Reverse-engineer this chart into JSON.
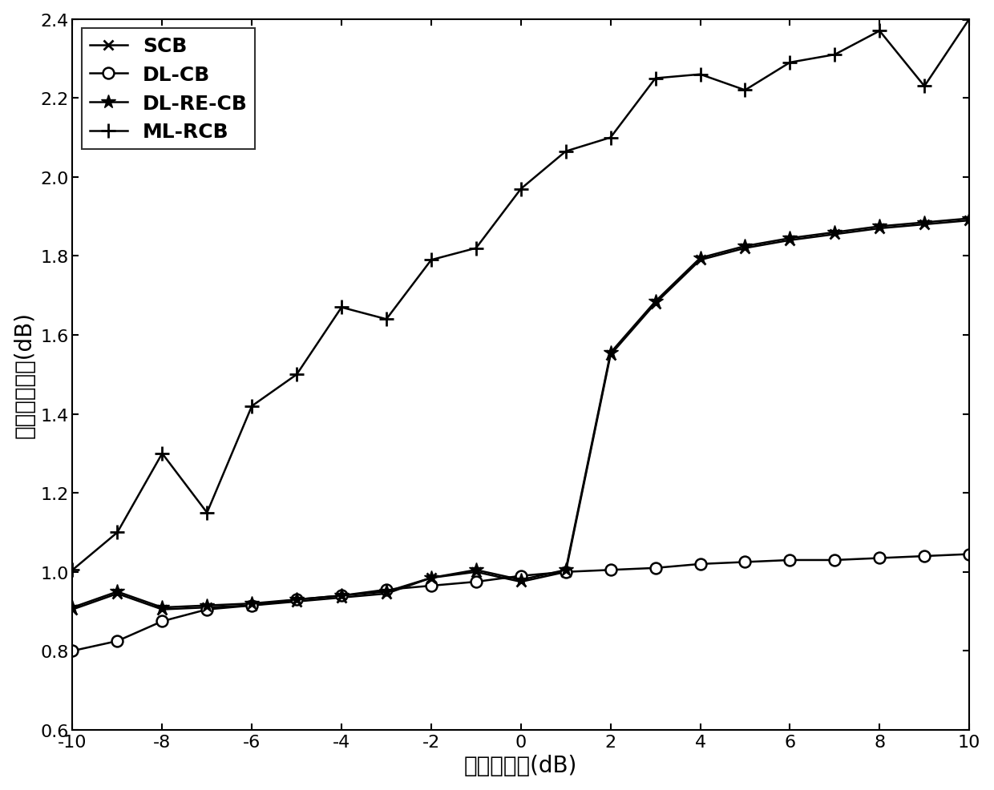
{
  "x": [
    -10,
    -9,
    -8,
    -7,
    -6,
    -5,
    -4,
    -3,
    -2,
    -1,
    0,
    1,
    2,
    3,
    4,
    5,
    6,
    7,
    8,
    9,
    10
  ],
  "SCB": [
    0.905,
    0.945,
    0.905,
    0.91,
    0.915,
    0.925,
    0.935,
    0.945,
    0.985,
    1.0,
    0.975,
    1.0,
    1.55,
    1.68,
    1.79,
    1.82,
    1.84,
    1.855,
    1.87,
    1.88,
    1.89
  ],
  "DL_CB": [
    0.8,
    0.825,
    0.875,
    0.905,
    0.915,
    0.93,
    0.94,
    0.955,
    0.965,
    0.975,
    0.99,
    1.0,
    1.005,
    1.01,
    1.02,
    1.025,
    1.03,
    1.03,
    1.035,
    1.04,
    1.045
  ],
  "DL_RE_CB": [
    0.91,
    0.95,
    0.91,
    0.915,
    0.92,
    0.93,
    0.94,
    0.95,
    0.985,
    1.005,
    0.98,
    1.005,
    1.555,
    1.685,
    1.795,
    1.825,
    1.845,
    1.86,
    1.875,
    1.885,
    1.895
  ],
  "ML_RCB": [
    1.005,
    1.1,
    1.3,
    1.15,
    1.42,
    1.5,
    1.67,
    1.64,
    1.79,
    1.82,
    1.97,
    2.065,
    2.1,
    2.25,
    2.26,
    2.22,
    2.29,
    2.31,
    2.37,
    2.23,
    2.4
  ],
  "xlim": [
    -10,
    10
  ],
  "ylim": [
    0.6,
    2.4
  ],
  "xlabel": "输入信噪比(dB)",
  "ylabel": "输出信干噪比(dB)",
  "yticks": [
    0.6,
    0.8,
    1.0,
    1.2,
    1.4,
    1.6,
    1.8,
    2.0,
    2.2,
    2.4
  ],
  "xticks": [
    -10,
    -8,
    -6,
    -4,
    -2,
    0,
    2,
    4,
    6,
    8,
    10
  ],
  "legend_labels": [
    "SCB",
    "DL-CB",
    "DL-RE-CB",
    "ML-RCB"
  ],
  "color": "black",
  "linewidth": 1.8,
  "markersize_x": 9,
  "markersize_o": 10,
  "markersize_star": 13,
  "markersize_plus": 13
}
